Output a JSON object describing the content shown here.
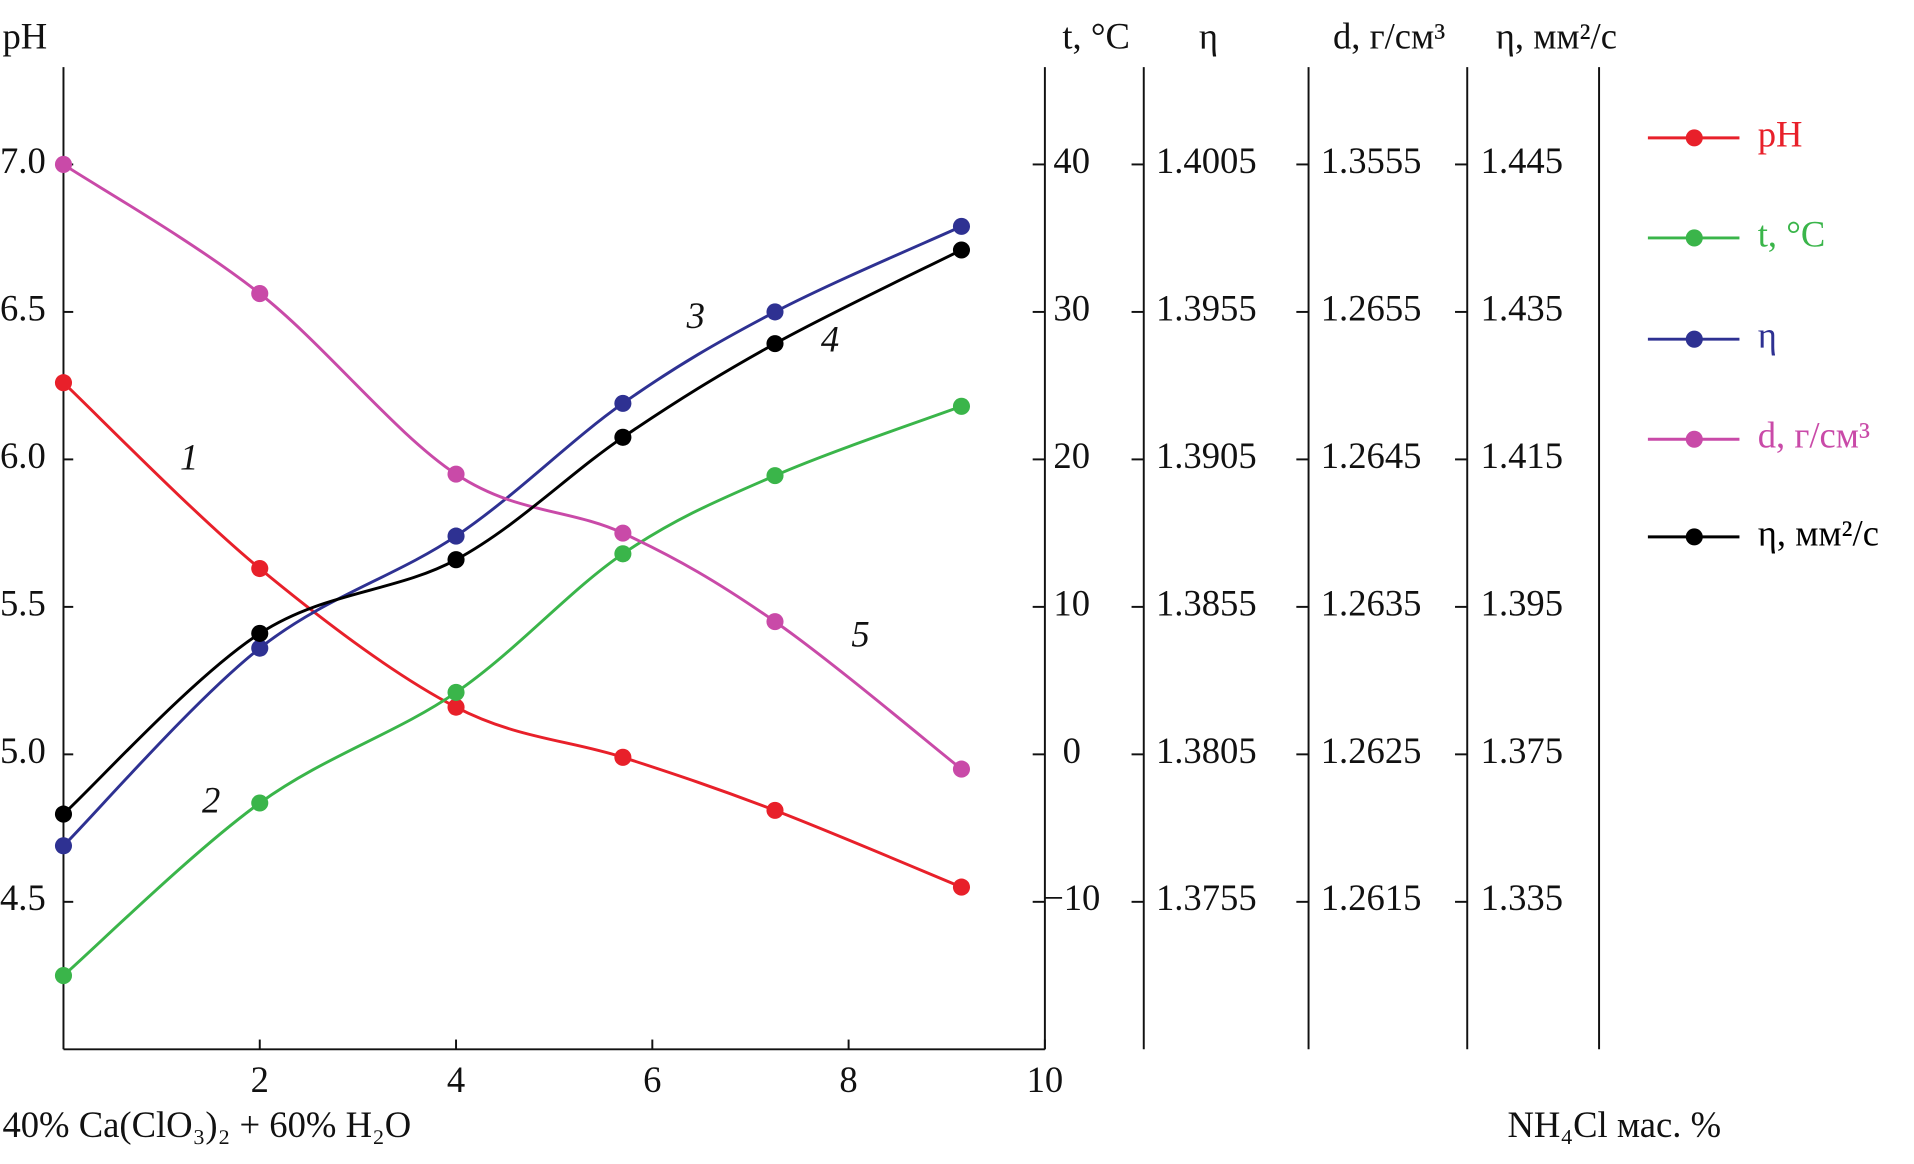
{
  "chart_data": {
    "type": "line",
    "ylabel": "pH",
    "xlim": [
      0,
      10
    ],
    "xticks": [
      2,
      4,
      6,
      8,
      10
    ],
    "ylim": [
      4.0,
      7.33
    ],
    "yticks": [
      4.5,
      {
        "value": 5,
        "label": "5.0"
      },
      5.5,
      {
        "value": 6,
        "label": "6.0"
      },
      6.5,
      {
        "value": 7,
        "label": "7.0"
      }
    ],
    "y2label": "t, °C",
    "y2ticks": [
      {
        "value": -10,
        "label": "−10"
      },
      0,
      10,
      20,
      30,
      40
    ],
    "y3label": "η",
    "y3ticks": [
      1.3755,
      1.3805,
      1.3855,
      1.3905,
      1.3955,
      1.4005
    ],
    "y4label": "d, г/см³",
    "y4ticks": [
      1.2615,
      1.2625,
      1.2635,
      1.2645,
      1.2655,
      1.3555
    ],
    "y5label": "η, мм²/с",
    "y5ticks": [
      1.335,
      1.375,
      1.395,
      1.415,
      1.435,
      1.445
    ],
    "xlabel_left": "40% Ca(ClO₃)₂ + 60% H₂O",
    "xlabel_right": "NH₄Cl мас. %",
    "x": [
      0,
      2.0,
      4.0,
      5.7,
      7.25,
      9.15
    ],
    "series": [
      {
        "name": "pH",
        "color": "#e8202a",
        "axis": "y",
        "label": "1",
        "values": [
          6.26,
          5.63,
          5.16,
          4.99,
          4.81,
          4.55
        ]
      },
      {
        "name": "t, °C",
        "color": "#3ab54a",
        "axis": "y2",
        "label": "2",
        "values": [
          -15.0,
          -3.3,
          4.2,
          13.6,
          18.9,
          23.6
        ]
      },
      {
        "name": "η",
        "color": "#2e3192",
        "axis": "y3",
        "label": "3",
        "values": [
          1.3774,
          1.3841,
          1.3879,
          1.3924,
          1.3955,
          1.3984
        ]
      },
      {
        "name": "d, г/см³",
        "color": "#c94aa8",
        "axis": "y4",
        "label": "5",
        "values": [
          1.3555,
          1.2767,
          1.2644,
          1.264,
          1.2634,
          1.2624
        ]
      },
      {
        "name": "η, мм²/с",
        "color": "#000000",
        "axis": "y5",
        "label": "4",
        "values": [
          1.3588,
          1.3914,
          1.4014,
          1.418,
          1.4307,
          1.4392
        ]
      }
    ]
  }
}
